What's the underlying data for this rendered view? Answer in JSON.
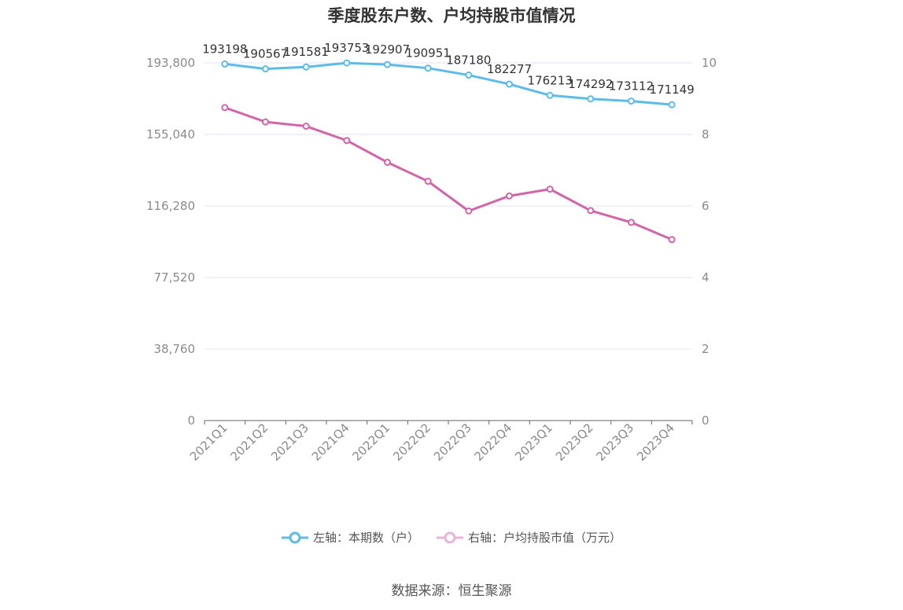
{
  "title": "季度股东户数、户均持股市值情况",
  "source": "数据来源：恒生聚源",
  "legend": [
    {
      "label": "左轴：本期数（户）",
      "color": "#5bbcec"
    },
    {
      "label": "右轴：户均持股市值（万元）",
      "color": "#d264a8"
    }
  ],
  "chart_data": {
    "type": "line",
    "categories": [
      "2021Q1",
      "2021Q2",
      "2021Q3",
      "2021Q4",
      "2022Q1",
      "2022Q2",
      "2022Q3",
      "2022Q4",
      "2023Q1",
      "2023Q2",
      "2023Q3",
      "2023Q4"
    ],
    "series": [
      {
        "name": "左轴：本期数（户）",
        "axis": "left",
        "color": "#5bbcec",
        "values": [
          193198,
          190567,
          191581,
          193753,
          192907,
          190951,
          187180,
          182277,
          176213,
          174292,
          173112,
          171149
        ],
        "data_labels": [
          "193198",
          "190567",
          "191581",
          "193753",
          "192907",
          "190951",
          "187180",
          "182277",
          "176213",
          "174292",
          "173112",
          "171149"
        ]
      },
      {
        "name": "右轴：户均持股市值（万元）",
        "axis": "right",
        "color": "#d264a8",
        "values": [
          8.75,
          8.35,
          8.23,
          7.83,
          7.22,
          6.69,
          5.86,
          6.28,
          6.47,
          5.87,
          5.54,
          5.06
        ]
      }
    ],
    "left_axis": {
      "min": 0,
      "max": 193800,
      "ticks": [
        "0",
        "38,760",
        "77,520",
        "116,280",
        "155,040",
        "193,800"
      ]
    },
    "right_axis": {
      "min": 0,
      "max": 10,
      "ticks": [
        "0",
        "2",
        "4",
        "6",
        "8",
        "10"
      ]
    },
    "grid": true
  }
}
